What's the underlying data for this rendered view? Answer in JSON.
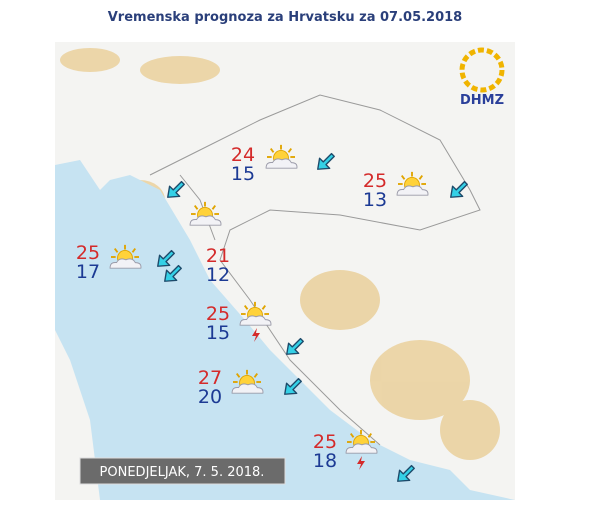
{
  "title": "Vremenska prognoza za Hrvatsku za 07.05.2018",
  "logo": "DHMZ",
  "date_label": "PONEDJELJAK, 7. 5. 2018.",
  "stations": [
    {
      "max": 24,
      "min": 15
    },
    {
      "max": 25,
      "min": 13
    },
    {
      "max": 25,
      "min": 17
    },
    {
      "max": 21,
      "min": 12
    },
    {
      "max": 25,
      "min": 15
    },
    {
      "max": 27,
      "min": 20
    },
    {
      "max": 25,
      "min": 18
    }
  ]
}
